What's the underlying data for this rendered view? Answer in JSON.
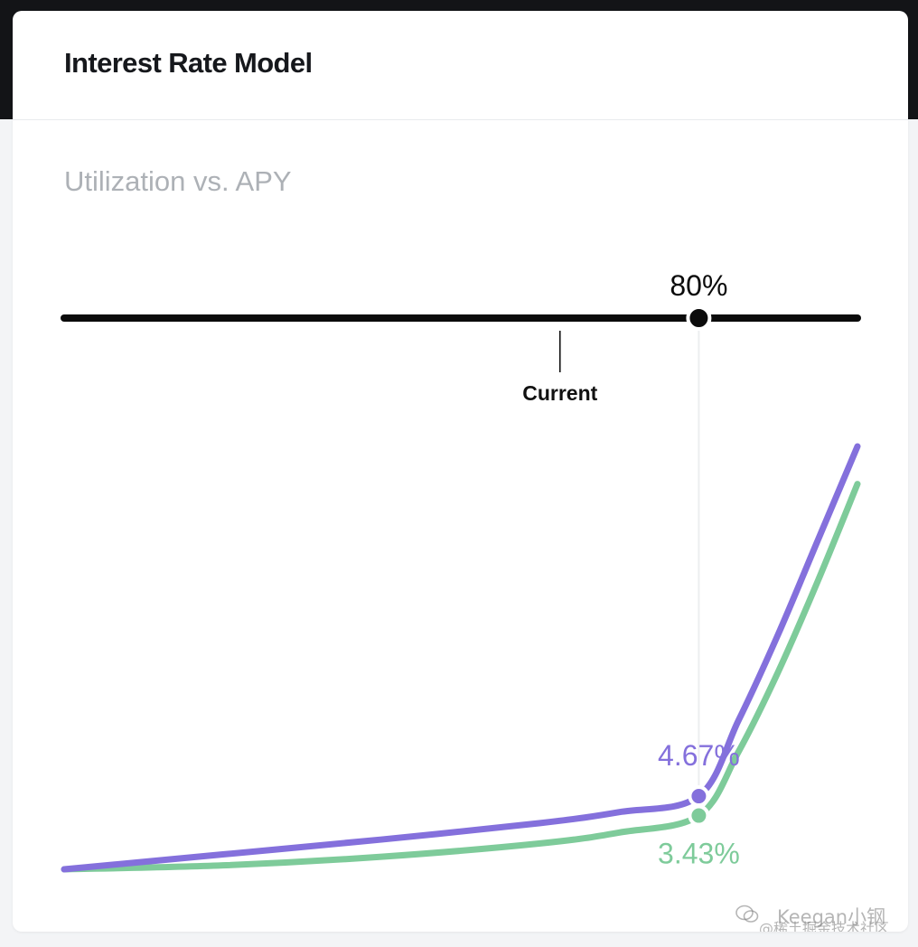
{
  "card": {
    "title": "Interest Rate Model"
  },
  "chart_data": {
    "type": "line",
    "subtitle": "Utilization vs. APY",
    "xlabel": "",
    "ylabel": "",
    "xlim": [
      0,
      100
    ],
    "ylim": [
      0,
      30
    ],
    "grid": false,
    "legend": "none",
    "x": [
      0,
      20,
      40,
      60,
      70,
      80,
      85,
      90,
      95,
      100
    ],
    "series": [
      {
        "color": "#8470dc",
        "values": [
          0,
          0.95,
          1.9,
          2.95,
          3.65,
          4.67,
          9.5,
          15.0,
          21.0,
          27.0
        ]
      },
      {
        "color": "#7ecb9a",
        "values": [
          0,
          0.25,
          0.8,
          1.65,
          2.35,
          3.43,
          7.5,
          12.6,
          18.4,
          24.6
        ]
      }
    ],
    "slider": {
      "selected_label": "80%",
      "selected_value": 80,
      "current_label": "Current",
      "current_value": 62.5
    },
    "annotations": [
      {
        "series": 0,
        "x": 80,
        "label": "4.67%",
        "color": "#8470dc"
      },
      {
        "series": 1,
        "x": 80,
        "label": "3.43%",
        "color": "#7ecb9a"
      }
    ]
  },
  "watermark": {
    "line1": "Keegan小钢",
    "line2": "@稀土掘金技术社区"
  }
}
